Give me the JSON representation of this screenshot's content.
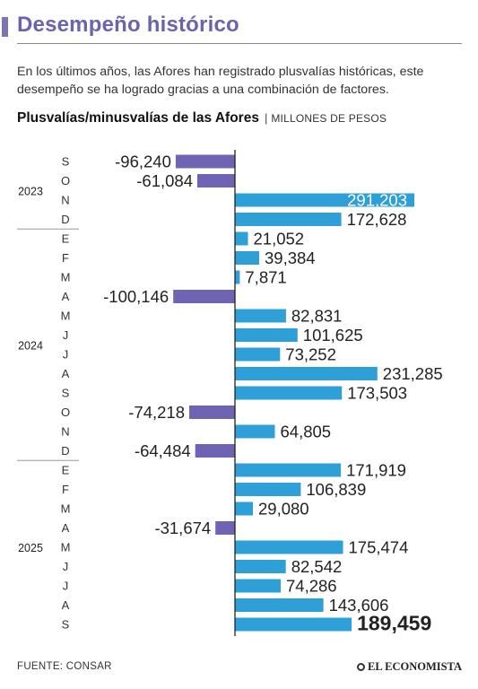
{
  "header": {
    "title": "Desempeño histórico",
    "intro": "En los últimos años, las Afores han registrado plusvalías históricas, este desempeño se ha logrado gracias a una combinación de factores."
  },
  "chart_data": {
    "type": "bar",
    "orientation": "horizontal",
    "title": "Plusvalías/minusvalías de las Afores",
    "separator": "|",
    "unit": "MILLONES DE PESOS",
    "categories": [
      "S",
      "O",
      "N",
      "D",
      "E",
      "F",
      "M",
      "A",
      "M",
      "J",
      "J",
      "A",
      "S",
      "O",
      "N",
      "D",
      "E",
      "F",
      "M",
      "A",
      "M",
      "J",
      "J",
      "A",
      "S"
    ],
    "values": [
      -96240,
      -61084,
      291203,
      172628,
      21052,
      39384,
      7871,
      -100146,
      82831,
      101625,
      73252,
      231285,
      173503,
      -74218,
      64805,
      -64484,
      171919,
      106839,
      29080,
      -31674,
      175474,
      82542,
      74286,
      143606,
      189459
    ],
    "value_labels": [
      "-96,240",
      "-61,084",
      "291,203",
      "172,628",
      "21,052",
      "39,384",
      "7,871",
      "-100,146",
      "82,831",
      "101,625",
      "73,252",
      "231,285",
      "173,503",
      "-74,218",
      "64,805",
      "-64,484",
      "171,919",
      "106,839",
      "29,080",
      "-31,674",
      "175,474",
      "82,542",
      "74,286",
      "143,606",
      "189,459"
    ],
    "year_groups": [
      {
        "label": "2023",
        "start": 0,
        "end": 3
      },
      {
        "label": "2024",
        "start": 4,
        "end": 15
      },
      {
        "label": "2025",
        "start": 16,
        "end": 24
      }
    ],
    "highlight_index": 24,
    "colors": {
      "positive": "#2f9fd8",
      "negative": "#6f64b3",
      "axis": "#222222",
      "divider": "#9a9a9a"
    },
    "grid": false,
    "legend": "none"
  },
  "footer": {
    "source": "FUENTE: CONSAR",
    "brand": "EL ECONOMISTA"
  }
}
